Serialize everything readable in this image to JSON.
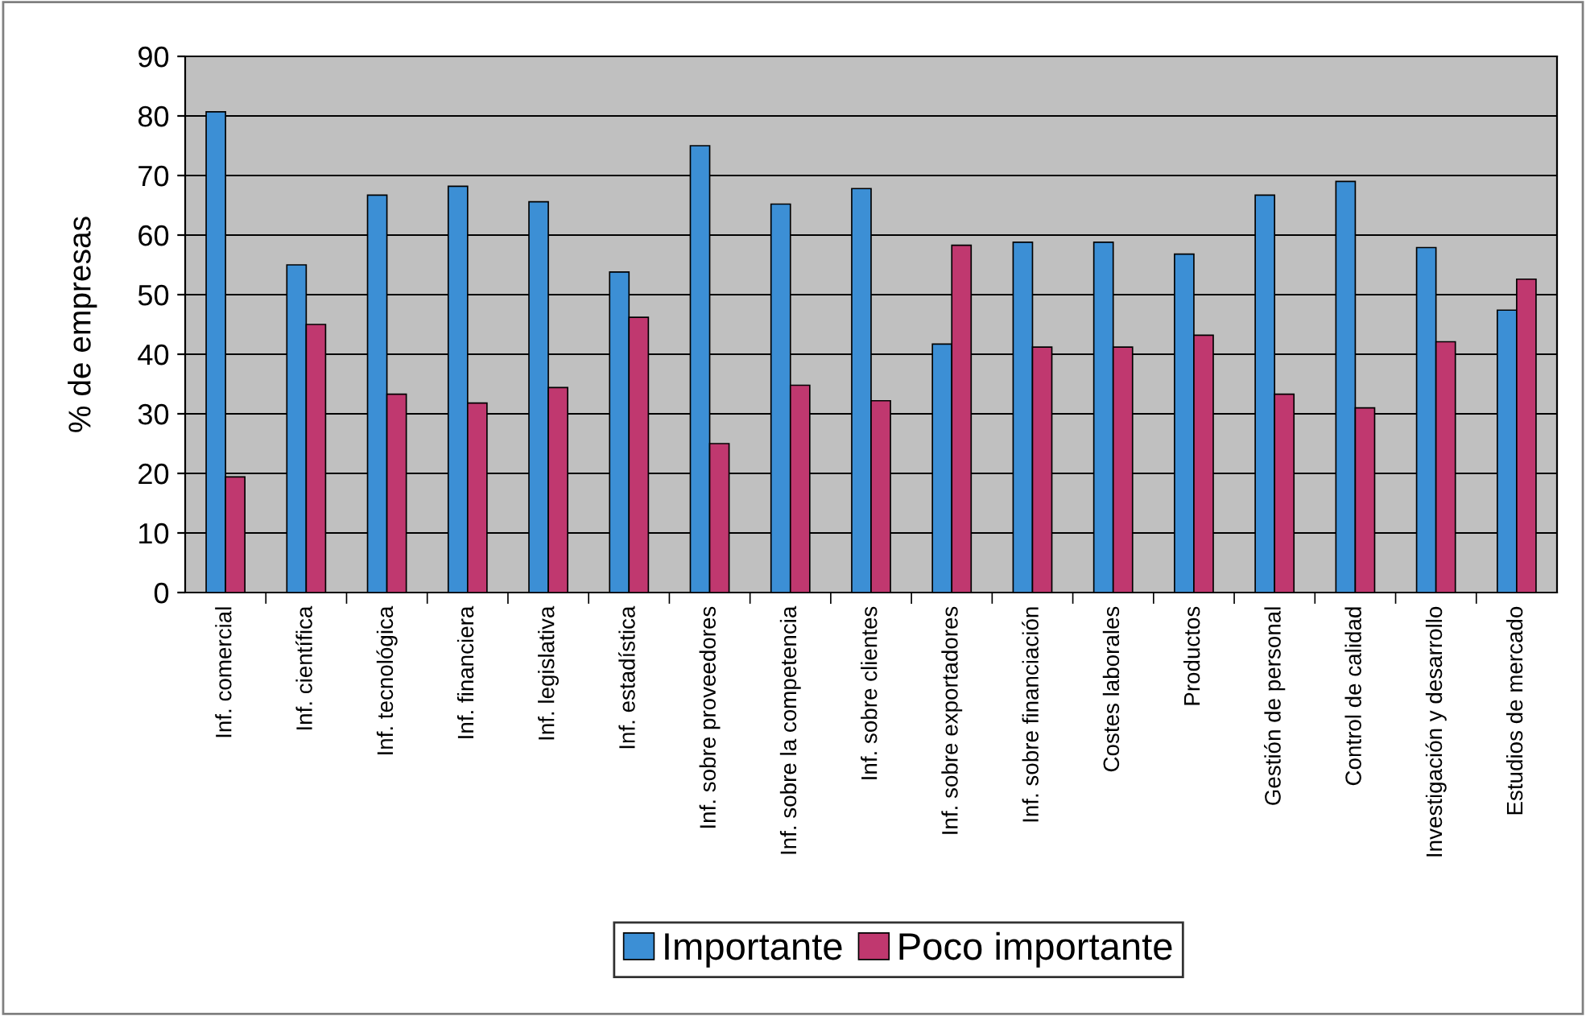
{
  "chart_data": {
    "type": "bar",
    "ylabel": "% de empresas",
    "categories": [
      "Inf. comercial",
      "Inf. científica",
      "Inf. tecnológica",
      "Inf. financiera",
      "Inf. legislativa",
      "Inf. estadística",
      "Inf. sobre proveedores",
      "Inf. sobre la competencia",
      "Inf. sobre clientes",
      "Inf. sobre exportadores",
      "Inf. sobre financiación",
      "Costes laborales",
      "Productos",
      "Gestión de personal",
      "Control de calidad",
      "Investigación y desarrollo",
      "Estudios de mercado"
    ],
    "series": [
      {
        "name": "Importante",
        "color": "#3c8fd5",
        "values": [
          80.7,
          55,
          66.7,
          68.2,
          65.6,
          53.8,
          75,
          65.2,
          67.8,
          41.7,
          58.8,
          58.8,
          56.8,
          66.7,
          69,
          57.9,
          47.4
        ]
      },
      {
        "name": "Poco importante",
        "color": "#c0386f",
        "values": [
          19.4,
          45,
          33.3,
          31.8,
          34.4,
          46.2,
          25,
          34.8,
          32.2,
          58.3,
          41.2,
          41.2,
          43.2,
          33.3,
          31,
          42.1,
          52.6
        ]
      }
    ],
    "ylim": [
      0,
      90
    ],
    "yticks": [
      0,
      10,
      20,
      30,
      40,
      50,
      60,
      70,
      80,
      90
    ],
    "grid": "y",
    "legend": "bottom"
  }
}
